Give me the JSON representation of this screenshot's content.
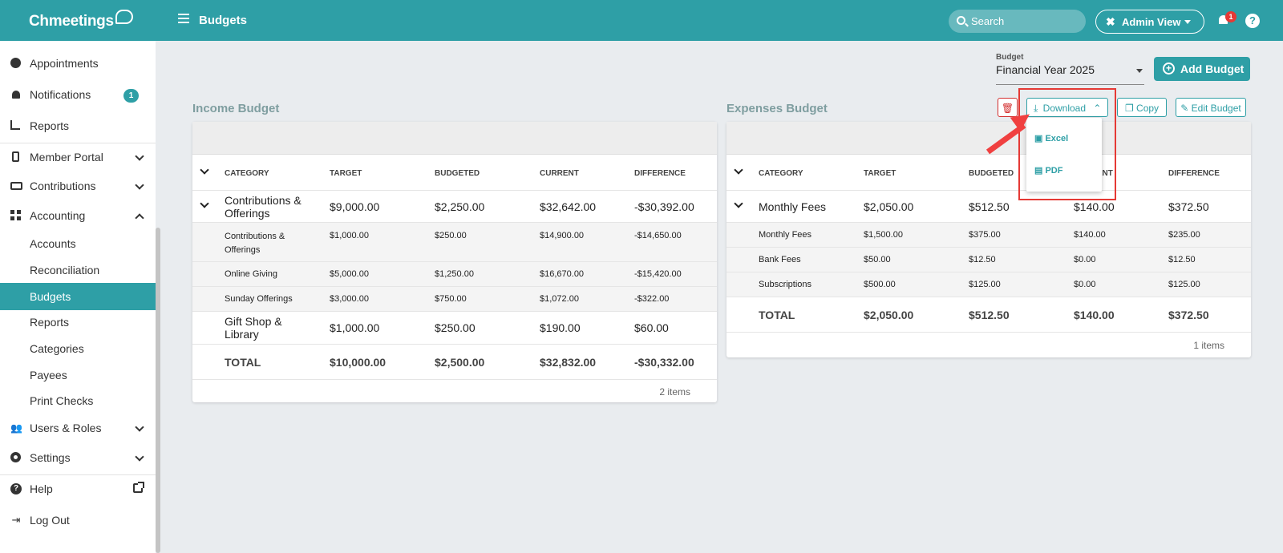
{
  "app": {
    "logo": "Chmeetings",
    "page_title": "Budgets"
  },
  "topbar": {
    "search_placeholder": "Search",
    "admin_view": "Admin View",
    "notif_count": "1",
    "help": "?"
  },
  "sidebar": {
    "items": [
      {
        "label": "Appointments"
      },
      {
        "label": "Notifications",
        "badge": "1"
      },
      {
        "label": "Reports"
      },
      {
        "label": "Member Portal"
      },
      {
        "label": "Contributions"
      },
      {
        "label": "Accounting"
      },
      {
        "label": "Accounts"
      },
      {
        "label": "Reconciliation"
      },
      {
        "label": "Budgets"
      },
      {
        "label": "Reports"
      },
      {
        "label": "Categories"
      },
      {
        "label": "Payees"
      },
      {
        "label": "Print Checks"
      },
      {
        "label": "Users & Roles"
      },
      {
        "label": "Settings"
      },
      {
        "label": "Help"
      },
      {
        "label": "Log Out"
      }
    ]
  },
  "budget_selector": {
    "label": "Budget",
    "value": "Financial Year 2025"
  },
  "actions": {
    "add_budget": "Add Budget",
    "download": "Download",
    "copy": "Copy",
    "edit_budget": "Edit Budget"
  },
  "download_menu": {
    "excel": "Excel",
    "pdf": "PDF"
  },
  "columns": {
    "category": "CATEGORY",
    "target": "TARGET",
    "budgeted": "BUDGETED",
    "current": "CURRENT",
    "difference": "DIFFERENCE"
  },
  "income": {
    "title": "Income Budget",
    "groups": [
      {
        "category": "Contributions & Offerings",
        "target": "$9,000.00",
        "budgeted": "$2,250.00",
        "current": "$32,642.00",
        "difference": "-$30,392.00",
        "children": [
          {
            "category": "Contributions & Offerings",
            "target": "$1,000.00",
            "budgeted": "$250.00",
            "current": "$14,900.00",
            "difference": "-$14,650.00"
          },
          {
            "category": "Online Giving",
            "target": "$5,000.00",
            "budgeted": "$1,250.00",
            "current": "$16,670.00",
            "difference": "-$15,420.00"
          },
          {
            "category": "Sunday Offerings",
            "target": "$3,000.00",
            "budgeted": "$750.00",
            "current": "$1,072.00",
            "difference": "-$322.00"
          }
        ]
      },
      {
        "category": "Gift Shop & Library",
        "target": "$1,000.00",
        "budgeted": "$250.00",
        "current": "$190.00",
        "difference": "$60.00"
      }
    ],
    "total": {
      "label": "TOTAL",
      "target": "$10,000.00",
      "budgeted": "$2,500.00",
      "current": "$32,832.00",
      "difference": "-$30,332.00"
    },
    "items": "2 items"
  },
  "expenses": {
    "title": "Expenses Budget",
    "group": {
      "category": "Monthly Fees",
      "target": "$2,050.00",
      "budgeted": "$512.50",
      "current": "$140.00",
      "difference": "$372.50"
    },
    "children": [
      {
        "category": "Monthly Fees",
        "target": "$1,500.00",
        "budgeted": "$375.00",
        "current": "$140.00",
        "difference": "$235.00"
      },
      {
        "category": "Bank Fees",
        "target": "$50.00",
        "budgeted": "$12.50",
        "current": "$0.00",
        "difference": "$12.50"
      },
      {
        "category": "Subscriptions",
        "target": "$500.00",
        "budgeted": "$125.00",
        "current": "$0.00",
        "difference": "$125.00"
      }
    ],
    "total": {
      "label": "TOTAL",
      "target": "$2,050.00",
      "budgeted": "$512.50",
      "current": "$140.00",
      "difference": "$372.50"
    },
    "items": "1 items"
  },
  "colors": {
    "accent": "#2e9fa6",
    "highlight": "#e53935"
  }
}
